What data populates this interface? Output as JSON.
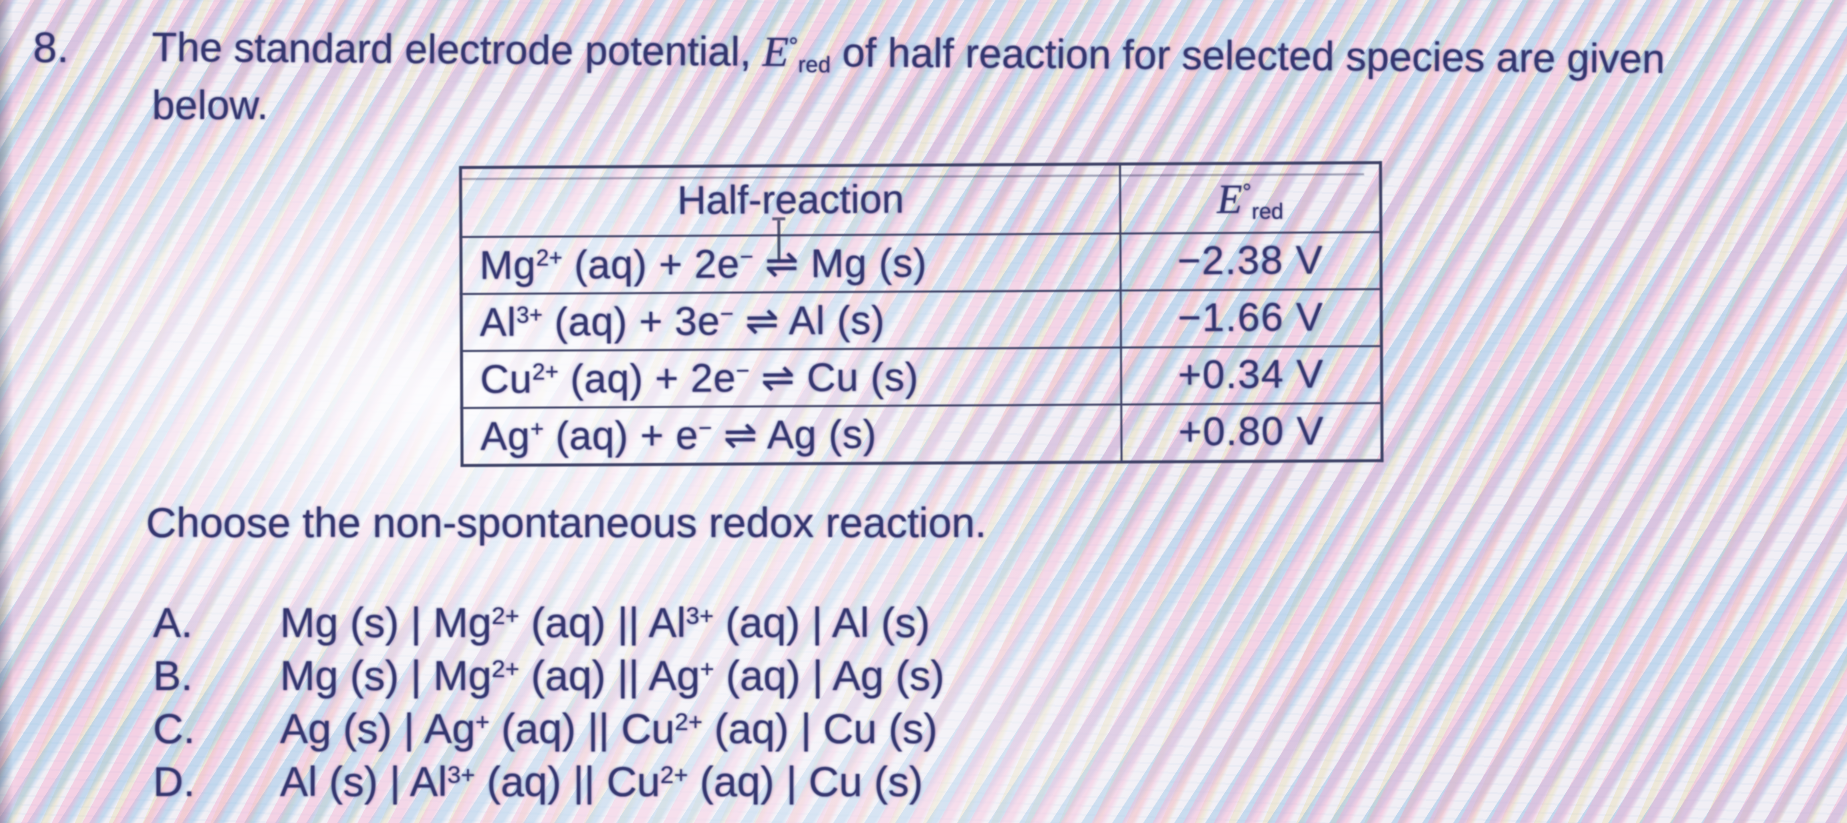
{
  "colors": {
    "text": "#34366f",
    "table_border": "#3d4166",
    "paper": "#f1eff5",
    "moire_pink": "#f7a8cd",
    "moire_blue": "#80b6e2",
    "moire_yellow": "#e4d48c"
  },
  "question": {
    "number": "8.",
    "title_line1_segments": [
      {
        "t": "txt",
        "v": "The standard electrode potential, "
      },
      {
        "t": "em",
        "v": "E"
      },
      {
        "t": "sup",
        "v": "°"
      },
      {
        "t": "sub",
        "v": "red"
      },
      {
        "t": "txt",
        "v": " of half reaction for selected species are given"
      }
    ],
    "title_line2": "below.",
    "prompt": "Choose the non-spontaneous redox reaction."
  },
  "table": {
    "headers": {
      "half_reaction": "Half-reaction",
      "potential_segments": [
        {
          "t": "em",
          "v": "E"
        },
        {
          "t": "sup",
          "v": "°"
        },
        {
          "t": "sub",
          "v": "red"
        }
      ]
    },
    "rows": [
      {
        "reaction_segments": [
          {
            "t": "txt",
            "v": "Mg"
          },
          {
            "t": "sup",
            "v": "2+"
          },
          {
            "t": "txt",
            "v": " (aq) + 2e"
          },
          {
            "t": "sup",
            "v": "−"
          },
          {
            "t": "txt",
            "v": " ⇌ Mg (s)"
          }
        ],
        "potential": "−2.38 V"
      },
      {
        "reaction_segments": [
          {
            "t": "txt",
            "v": "Al"
          },
          {
            "t": "sup",
            "v": "3+"
          },
          {
            "t": "txt",
            "v": " (aq) + 3e"
          },
          {
            "t": "sup",
            "v": "−"
          },
          {
            "t": "txt",
            "v": " ⇌ Al (s)"
          }
        ],
        "potential": "−1.66 V"
      },
      {
        "reaction_segments": [
          {
            "t": "txt",
            "v": "Cu"
          },
          {
            "t": "sup",
            "v": "2+"
          },
          {
            "t": "txt",
            "v": " (aq) + 2e"
          },
          {
            "t": "sup",
            "v": "−"
          },
          {
            "t": "txt",
            "v": " ⇌ Cu (s)"
          }
        ],
        "potential": "+0.34 V"
      },
      {
        "reaction_segments": [
          {
            "t": "txt",
            "v": "Ag"
          },
          {
            "t": "sup",
            "v": "+"
          },
          {
            "t": "txt",
            "v": " (aq) + e"
          },
          {
            "t": "sup",
            "v": "−"
          },
          {
            "t": "txt",
            "v": " ⇌ Ag (s)"
          }
        ],
        "potential": "+0.80 V"
      }
    ]
  },
  "options": [
    {
      "letter": "A.",
      "segments": [
        {
          "t": "txt",
          "v": "Mg (s) | Mg"
        },
        {
          "t": "sup",
          "v": "2+"
        },
        {
          "t": "txt",
          "v": " (aq) || Al"
        },
        {
          "t": "sup",
          "v": "3+"
        },
        {
          "t": "txt",
          "v": " (aq) | Al (s)"
        }
      ]
    },
    {
      "letter": "B.",
      "segments": [
        {
          "t": "txt",
          "v": "Mg (s) | Mg"
        },
        {
          "t": "sup",
          "v": "2+"
        },
        {
          "t": "txt",
          "v": " (aq) || Ag"
        },
        {
          "t": "sup",
          "v": "+"
        },
        {
          "t": "txt",
          "v": " (aq) | Ag (s)"
        }
      ]
    },
    {
      "letter": "C.",
      "segments": [
        {
          "t": "txt",
          "v": "Ag (s) | Ag"
        },
        {
          "t": "sup",
          "v": "+"
        },
        {
          "t": "txt",
          "v": " (aq) || Cu"
        },
        {
          "t": "sup",
          "v": "2+"
        },
        {
          "t": "txt",
          "v": " (aq) | Cu (s)"
        }
      ]
    },
    {
      "letter": "D.",
      "segments": [
        {
          "t": "txt",
          "v": "Al (s) | Al"
        },
        {
          "t": "sup",
          "v": "3+"
        },
        {
          "t": "txt",
          "v": " (aq) || Cu"
        },
        {
          "t": "sup",
          "v": "2+"
        },
        {
          "t": "txt",
          "v": " (aq) | Cu (s)"
        }
      ]
    }
  ]
}
